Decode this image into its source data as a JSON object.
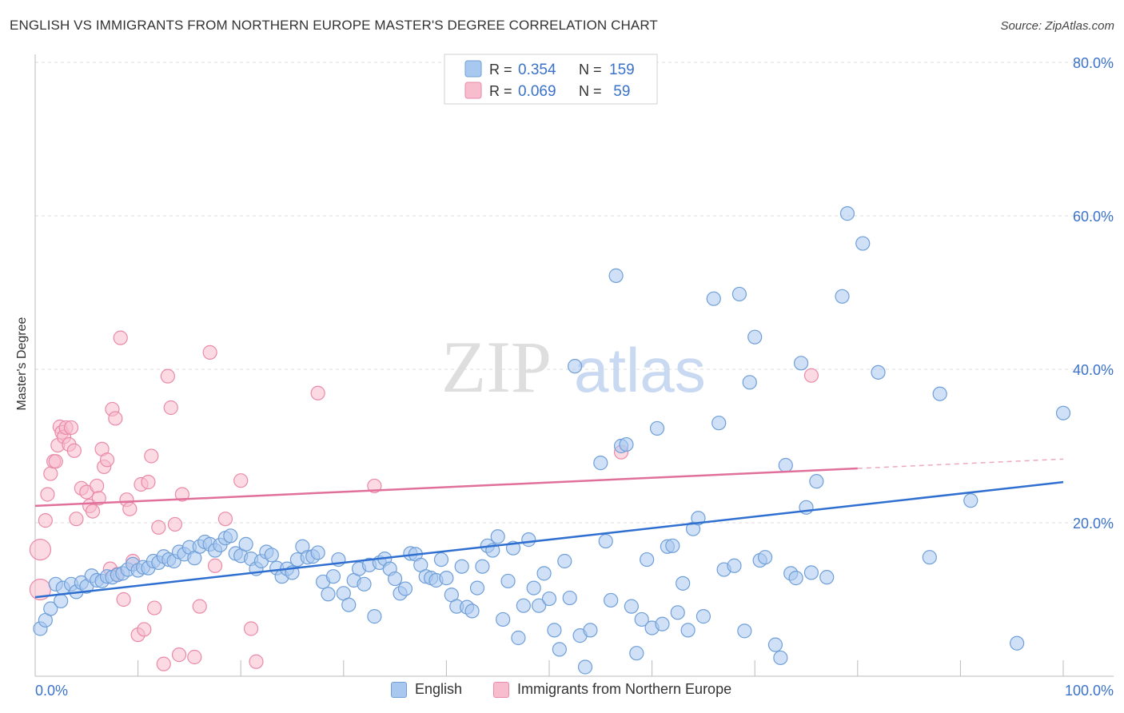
{
  "title": "ENGLISH VS IMMIGRANTS FROM NORTHERN EUROPE MASTER'S DEGREE CORRELATION CHART",
  "source": "Source: ZipAtlas.com",
  "watermark": {
    "part1": "ZIP",
    "part2": "atlas"
  },
  "colors": {
    "blue_fill": "#a9c8f0",
    "blue_stroke": "#6f9fd8",
    "blue_line": "#2f6fd0",
    "pink_fill": "#f7bccd",
    "pink_stroke": "#ea8aa8",
    "pink_line": "#e0709a",
    "axis_text": "#3a72c9",
    "grid": "#dcdcdc"
  },
  "legend_top": [
    {
      "r_label": "R =",
      "r_value": "0.354",
      "n_label": "N =",
      "n_value": "159"
    },
    {
      "r_label": "R =",
      "r_value": "0.069",
      "n_label": "N =",
      "n_value": " 59"
    }
  ],
  "legend_bottom": [
    {
      "label": "English"
    },
    {
      "label": "Immigrants from Northern Europe"
    }
  ],
  "chart_data": {
    "type": "scatter",
    "title": "ENGLISH VS IMMIGRANTS FROM NORTHERN EUROPE MASTER'S DEGREE CORRELATION CHART",
    "xlabel": "",
    "ylabel": "Master's Degree",
    "xlim": [
      0,
      100
    ],
    "ylim": [
      0,
      80
    ],
    "x_tick_labels": [
      "0.0%",
      "100.0%"
    ],
    "y_tick_labels": [
      "20.0%",
      "40.0%",
      "60.0%",
      "80.0%"
    ],
    "y_ticks": [
      20,
      40,
      60,
      80
    ],
    "series": [
      {
        "name": "English",
        "R": 0.354,
        "N": 159,
        "trend": {
          "x": [
            0,
            100
          ],
          "y": [
            10.3,
            25.3
          ],
          "dashed_from": null
        },
        "points": [
          [
            0.5,
            6.2
          ],
          [
            1.0,
            7.3
          ],
          [
            1.5,
            8.8
          ],
          [
            2.0,
            12.0
          ],
          [
            2.5,
            9.8
          ],
          [
            2.7,
            11.5
          ],
          [
            3.5,
            12.0
          ],
          [
            4.0,
            11.0
          ],
          [
            4.5,
            12.2
          ],
          [
            5.0,
            11.7
          ],
          [
            5.5,
            13.1
          ],
          [
            6.0,
            12.5
          ],
          [
            6.5,
            12.4
          ],
          [
            7.0,
            13.0
          ],
          [
            7.5,
            12.9
          ],
          [
            8.0,
            13.2
          ],
          [
            8.5,
            13.4
          ],
          [
            9.0,
            13.9
          ],
          [
            9.5,
            14.6
          ],
          [
            10.0,
            13.8
          ],
          [
            10.5,
            14.2
          ],
          [
            11.0,
            14.1
          ],
          [
            11.5,
            15.0
          ],
          [
            12.0,
            14.8
          ],
          [
            12.5,
            15.6
          ],
          [
            13.0,
            15.2
          ],
          [
            13.5,
            15.0
          ],
          [
            14.0,
            16.2
          ],
          [
            14.5,
            15.9
          ],
          [
            15.0,
            16.8
          ],
          [
            15.5,
            15.4
          ],
          [
            16.0,
            16.9
          ],
          [
            16.5,
            17.5
          ],
          [
            17.0,
            17.2
          ],
          [
            17.5,
            16.4
          ],
          [
            18.0,
            17.1
          ],
          [
            18.5,
            18.0
          ],
          [
            19.0,
            18.3
          ],
          [
            19.5,
            16.0
          ],
          [
            20.0,
            15.7
          ],
          [
            20.5,
            17.2
          ],
          [
            21.0,
            15.3
          ],
          [
            21.5,
            14.0
          ],
          [
            22.0,
            15.0
          ],
          [
            22.5,
            16.2
          ],
          [
            23.0,
            15.8
          ],
          [
            23.5,
            14.1
          ],
          [
            24.0,
            13.0
          ],
          [
            24.5,
            14.0
          ],
          [
            25.0,
            13.5
          ],
          [
            25.5,
            15.2
          ],
          [
            26.0,
            16.9
          ],
          [
            26.5,
            15.5
          ],
          [
            27.0,
            15.6
          ],
          [
            27.5,
            16.1
          ],
          [
            28.0,
            12.3
          ],
          [
            28.5,
            10.7
          ],
          [
            29.0,
            13.0
          ],
          [
            29.5,
            15.2
          ],
          [
            30.0,
            10.8
          ],
          [
            30.5,
            9.3
          ],
          [
            31.0,
            12.5
          ],
          [
            31.5,
            14.0
          ],
          [
            32.0,
            12.0
          ],
          [
            32.5,
            14.5
          ],
          [
            33.0,
            7.8
          ],
          [
            33.5,
            14.8
          ],
          [
            34.0,
            15.3
          ],
          [
            34.5,
            14.0
          ],
          [
            35.0,
            12.7
          ],
          [
            35.5,
            10.8
          ],
          [
            36.0,
            11.4
          ],
          [
            36.5,
            16.0
          ],
          [
            37.0,
            15.9
          ],
          [
            37.5,
            14.5
          ],
          [
            38.0,
            13.0
          ],
          [
            38.5,
            12.8
          ],
          [
            39.0,
            12.5
          ],
          [
            39.5,
            15.2
          ],
          [
            40.0,
            12.8
          ],
          [
            40.5,
            10.6
          ],
          [
            41.0,
            9.1
          ],
          [
            41.5,
            14.3
          ],
          [
            42.0,
            9.0
          ],
          [
            42.5,
            8.5
          ],
          [
            43.0,
            11.5
          ],
          [
            43.5,
            14.3
          ],
          [
            44.0,
            17.0
          ],
          [
            44.5,
            16.4
          ],
          [
            45.0,
            18.2
          ],
          [
            45.5,
            7.4
          ],
          [
            46.0,
            12.4
          ],
          [
            46.5,
            16.7
          ],
          [
            47.0,
            5.0
          ],
          [
            47.5,
            9.2
          ],
          [
            48.0,
            17.8
          ],
          [
            48.5,
            11.5
          ],
          [
            49.0,
            9.2
          ],
          [
            49.5,
            13.4
          ],
          [
            50.0,
            10.1
          ],
          [
            50.5,
            6.0
          ],
          [
            51.0,
            3.5
          ],
          [
            51.5,
            15.0
          ],
          [
            52.0,
            10.2
          ],
          [
            52.5,
            40.4
          ],
          [
            53.0,
            5.3
          ],
          [
            53.5,
            1.2
          ],
          [
            54.0,
            6.0
          ],
          [
            55.0,
            27.8
          ],
          [
            55.5,
            17.6
          ],
          [
            56.0,
            9.9
          ],
          [
            56.5,
            52.2
          ],
          [
            57.0,
            30.0
          ],
          [
            57.5,
            30.2
          ],
          [
            58.0,
            9.1
          ],
          [
            58.5,
            3.0
          ],
          [
            59.0,
            7.4
          ],
          [
            59.5,
            15.2
          ],
          [
            60.0,
            6.3
          ],
          [
            60.5,
            32.3
          ],
          [
            61.0,
            6.8
          ],
          [
            61.5,
            16.9
          ],
          [
            62.0,
            17.0
          ],
          [
            62.5,
            8.3
          ],
          [
            63.0,
            12.1
          ],
          [
            63.5,
            6.0
          ],
          [
            64.0,
            19.2
          ],
          [
            64.5,
            20.6
          ],
          [
            65.0,
            7.8
          ],
          [
            66.0,
            49.2
          ],
          [
            66.5,
            33.0
          ],
          [
            67.0,
            13.9
          ],
          [
            68.0,
            14.4
          ],
          [
            68.5,
            49.8
          ],
          [
            69.0,
            5.9
          ],
          [
            69.5,
            38.3
          ],
          [
            70.0,
            44.2
          ],
          [
            70.5,
            15.1
          ],
          [
            71.0,
            15.5
          ],
          [
            72.0,
            4.1
          ],
          [
            72.5,
            2.4
          ],
          [
            73.0,
            27.5
          ],
          [
            73.5,
            13.4
          ],
          [
            74.0,
            12.8
          ],
          [
            74.5,
            40.8
          ],
          [
            75.0,
            22.0
          ],
          [
            75.5,
            13.5
          ],
          [
            76.0,
            25.4
          ],
          [
            77.0,
            12.9
          ],
          [
            78.5,
            49.5
          ],
          [
            79.0,
            60.3
          ],
          [
            80.5,
            56.4
          ],
          [
            82.0,
            39.6
          ],
          [
            87.0,
            15.5
          ],
          [
            88.0,
            36.8
          ],
          [
            91.0,
            22.9
          ],
          [
            95.5,
            4.3
          ],
          [
            100.0,
            34.3
          ]
        ]
      },
      {
        "name": "Immigrants from Northern Europe",
        "R": 0.069,
        "N": 59,
        "trend": {
          "x": [
            0,
            100
          ],
          "y": [
            22.2,
            28.3
          ],
          "dashed_from": 80
        },
        "points": [
          [
            0.5,
            16.5
          ],
          [
            0.5,
            11.3
          ],
          [
            1.0,
            20.3
          ],
          [
            1.2,
            23.7
          ],
          [
            1.5,
            26.4
          ],
          [
            1.8,
            28.0
          ],
          [
            2.0,
            28.0
          ],
          [
            2.2,
            30.1
          ],
          [
            2.4,
            32.5
          ],
          [
            2.6,
            31.8
          ],
          [
            2.8,
            31.2
          ],
          [
            3.0,
            32.4
          ],
          [
            3.3,
            30.2
          ],
          [
            3.5,
            32.4
          ],
          [
            3.8,
            29.4
          ],
          [
            4.0,
            20.5
          ],
          [
            4.5,
            24.5
          ],
          [
            5.0,
            24.0
          ],
          [
            5.3,
            22.2
          ],
          [
            5.6,
            21.5
          ],
          [
            6.0,
            24.8
          ],
          [
            6.2,
            23.2
          ],
          [
            6.5,
            29.6
          ],
          [
            6.7,
            27.3
          ],
          [
            7.0,
            28.2
          ],
          [
            7.3,
            14.0
          ],
          [
            7.5,
            34.8
          ],
          [
            7.8,
            33.6
          ],
          [
            8.0,
            13.3
          ],
          [
            8.3,
            44.1
          ],
          [
            8.6,
            10.0
          ],
          [
            8.9,
            23.0
          ],
          [
            9.2,
            21.8
          ],
          [
            9.5,
            15.0
          ],
          [
            10.0,
            5.4
          ],
          [
            10.3,
            25.0
          ],
          [
            10.6,
            6.1
          ],
          [
            11.0,
            25.3
          ],
          [
            11.3,
            28.7
          ],
          [
            11.6,
            8.9
          ],
          [
            12.0,
            19.4
          ],
          [
            12.5,
            1.6
          ],
          [
            12.9,
            39.1
          ],
          [
            13.2,
            35.0
          ],
          [
            13.6,
            19.8
          ],
          [
            14.0,
            2.8
          ],
          [
            14.3,
            23.7
          ],
          [
            15.5,
            2.5
          ],
          [
            16.0,
            9.1
          ],
          [
            17.0,
            42.2
          ],
          [
            17.5,
            14.4
          ],
          [
            18.5,
            20.5
          ],
          [
            20.0,
            25.5
          ],
          [
            21.0,
            6.2
          ],
          [
            21.5,
            1.9
          ],
          [
            27.5,
            36.9
          ],
          [
            33.0,
            24.8
          ],
          [
            57.0,
            29.2
          ],
          [
            75.5,
            39.2
          ]
        ]
      }
    ]
  }
}
